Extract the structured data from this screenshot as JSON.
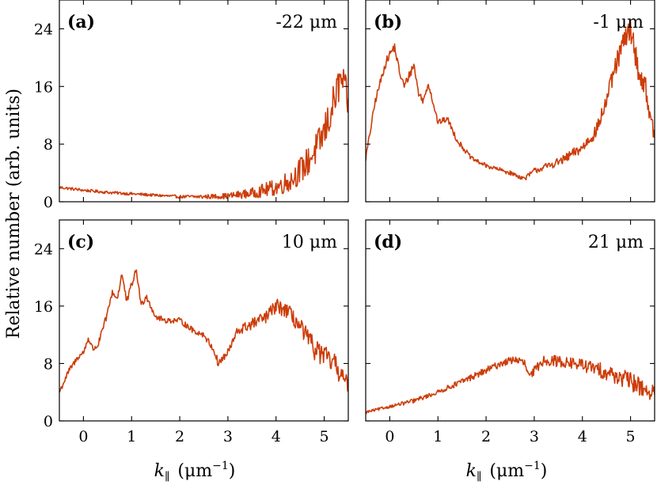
{
  "chart_data": [
    {
      "type": "line",
      "panel_label": "(a)",
      "position_label": "-22 μm",
      "xlim": [
        -0.5,
        5.5
      ],
      "ylim": [
        0,
        28
      ],
      "xticks": [
        0,
        1,
        2,
        3,
        4,
        5
      ],
      "yticks": [
        0,
        8,
        16,
        24
      ],
      "line_color": "#cc3d0a",
      "x": [
        -0.5,
        0.0,
        0.5,
        1.0,
        1.5,
        2.0,
        2.5,
        3.0,
        3.5,
        4.0,
        4.3,
        4.6,
        4.9,
        5.1,
        5.25,
        5.35,
        5.45,
        5.5
      ],
      "y": [
        2.0,
        1.6,
        1.3,
        1.1,
        0.9,
        0.7,
        0.7,
        0.8,
        1.2,
        2.0,
        3.0,
        5.0,
        8.0,
        11.5,
        15.0,
        17.0,
        15.5,
        13.0
      ],
      "noise": [
        0.2,
        0.2,
        0.2,
        0.2,
        0.2,
        0.2,
        0.3,
        0.4,
        0.7,
        1.2,
        1.6,
        2.0,
        2.4,
        2.6,
        2.6,
        2.4,
        2.0,
        1.8
      ]
    },
    {
      "type": "line",
      "panel_label": "(b)",
      "position_label": "-1 μm",
      "xlim": [
        -0.5,
        5.5
      ],
      "ylim": [
        0,
        28
      ],
      "xticks": [
        0,
        1,
        2,
        3,
        4,
        5
      ],
      "yticks": [
        0,
        8,
        16,
        24
      ],
      "line_color": "#cc3d0a",
      "x": [
        -0.5,
        -0.3,
        -0.1,
        0.0,
        0.1,
        0.2,
        0.3,
        0.4,
        0.5,
        0.6,
        0.7,
        0.8,
        1.0,
        1.2,
        1.4,
        1.7,
        2.0,
        2.5,
        2.8,
        3.0,
        3.3,
        3.6,
        4.0,
        4.3,
        4.5,
        4.7,
        4.85,
        5.0,
        5.1,
        5.2,
        5.3,
        5.4,
        5.5
      ],
      "y": [
        6.0,
        14.0,
        19.0,
        20.5,
        21.5,
        18.0,
        16.0,
        17.5,
        19.0,
        15.0,
        14.0,
        16.5,
        11.0,
        11.5,
        8.5,
        6.0,
        5.0,
        4.0,
        3.2,
        4.3,
        5.0,
        5.8,
        7.5,
        10.0,
        14.0,
        19.0,
        22.0,
        24.0,
        20.5,
        17.0,
        16.5,
        12.0,
        9.0
      ],
      "noise": [
        0.4,
        0.5,
        0.6,
        0.6,
        0.6,
        0.6,
        0.6,
        0.6,
        0.6,
        0.5,
        0.5,
        0.5,
        0.4,
        0.4,
        0.4,
        0.3,
        0.3,
        0.3,
        0.3,
        0.4,
        0.5,
        0.6,
        0.8,
        1.0,
        1.2,
        1.4,
        1.6,
        1.6,
        1.6,
        1.5,
        1.4,
        1.2,
        1.0
      ]
    },
    {
      "type": "line",
      "panel_label": "(c)",
      "position_label": "10 μm",
      "xlim": [
        -0.5,
        5.5
      ],
      "ylim": [
        0,
        28
      ],
      "xticks": [
        0,
        1,
        2,
        3,
        4,
        5
      ],
      "yticks": [
        0,
        8,
        16,
        24
      ],
      "line_color": "#cc3d0a",
      "x": [
        -0.5,
        -0.3,
        -0.1,
        0.0,
        0.1,
        0.2,
        0.3,
        0.5,
        0.6,
        0.7,
        0.8,
        0.9,
        1.0,
        1.1,
        1.2,
        1.3,
        1.5,
        1.7,
        2.0,
        2.3,
        2.5,
        2.7,
        2.8,
        3.0,
        3.2,
        3.5,
        3.8,
        4.0,
        4.2,
        4.4,
        4.6,
        4.8,
        5.0,
        5.2,
        5.4,
        5.5
      ],
      "y": [
        4.0,
        7.0,
        9.0,
        9.5,
        11.5,
        10.0,
        10.5,
        15.0,
        18.0,
        17.0,
        20.5,
        16.5,
        19.0,
        21.0,
        16.0,
        17.5,
        14.5,
        14.0,
        14.0,
        12.5,
        12.0,
        10.0,
        8.0,
        9.5,
        12.5,
        13.5,
        14.5,
        16.0,
        15.5,
        14.0,
        12.0,
        10.0,
        9.0,
        8.0,
        6.0,
        4.5
      ],
      "noise": [
        0.4,
        0.4,
        0.4,
        0.4,
        0.4,
        0.4,
        0.4,
        0.5,
        0.5,
        0.5,
        0.5,
        0.5,
        0.5,
        0.5,
        0.5,
        0.5,
        0.4,
        0.4,
        0.4,
        0.4,
        0.4,
        0.5,
        0.6,
        0.6,
        0.7,
        0.8,
        0.9,
        1.0,
        1.1,
        1.2,
        1.4,
        1.5,
        1.5,
        1.5,
        1.5,
        1.4
      ]
    },
    {
      "type": "line",
      "panel_label": "(d)",
      "position_label": "21 μm",
      "xlim": [
        -0.5,
        5.5
      ],
      "ylim": [
        0,
        28
      ],
      "xticks": [
        0,
        1,
        2,
        3,
        4,
        5
      ],
      "yticks": [
        0,
        8,
        16,
        24
      ],
      "line_color": "#cc3d0a",
      "x": [
        -0.5,
        0.0,
        0.5,
        1.0,
        1.5,
        2.0,
        2.3,
        2.6,
        2.8,
        2.9,
        3.0,
        3.2,
        3.5,
        4.0,
        4.5,
        5.0,
        5.3,
        5.5
      ],
      "y": [
        1.2,
        2.0,
        2.8,
        4.0,
        5.5,
        7.0,
        8.0,
        8.6,
        8.0,
        6.0,
        7.0,
        8.5,
        8.3,
        7.8,
        6.8,
        5.5,
        4.5,
        3.5
      ],
      "noise": [
        0.2,
        0.2,
        0.3,
        0.3,
        0.4,
        0.5,
        0.5,
        0.5,
        0.6,
        0.6,
        0.6,
        0.7,
        0.8,
        0.9,
        1.1,
        1.3,
        1.4,
        1.5
      ]
    }
  ],
  "axes": {
    "ylabel": "Relative number (arb. units)",
    "xlabel_symbol": "k",
    "xlabel_subscript": "∥",
    "xlabel_units": "(μm",
    "xlabel_units_power": "−1",
    "xlabel_units_close": ")"
  }
}
